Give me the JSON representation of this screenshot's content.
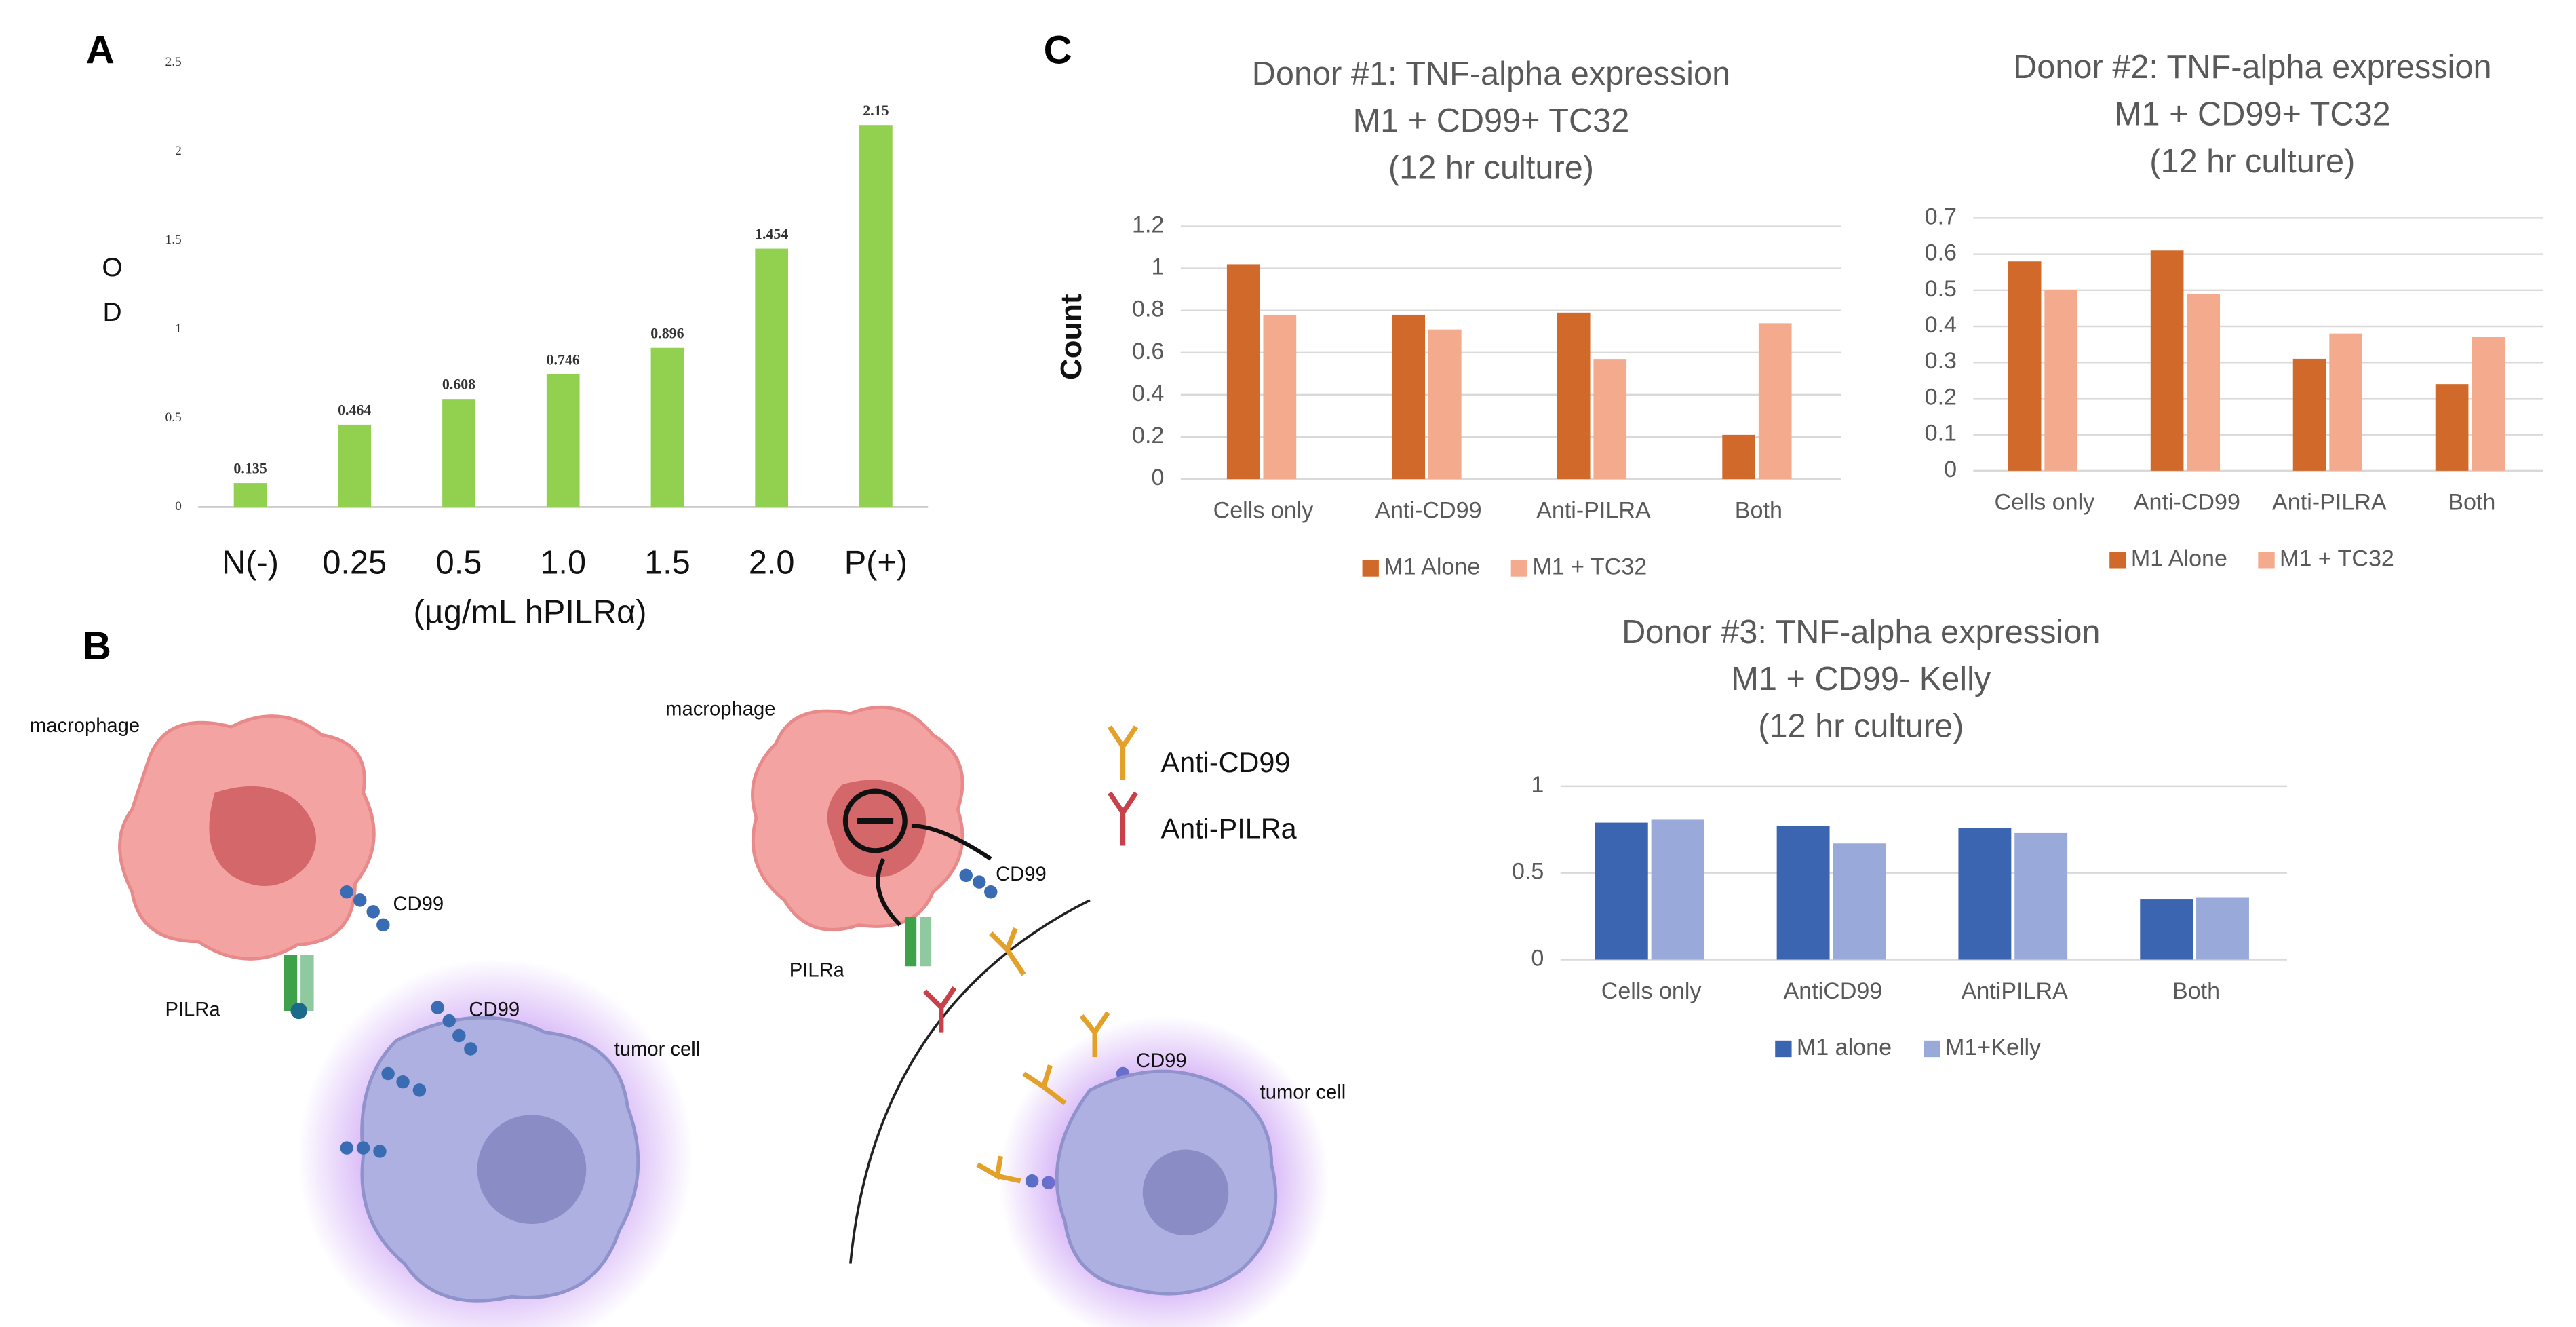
{
  "chart_data": [
    {
      "type": "bar",
      "categories": [
        "N(-)",
        "0.25",
        "0.5",
        "1.0",
        "1.5",
        "2.0",
        "P(+)"
      ],
      "values": [
        0.135,
        0.464,
        0.608,
        0.746,
        0.896,
        1.454,
        2.15
      ],
      "color": "#92d050",
      "ylim": [
        0,
        2.5
      ],
      "yticks": [
        0,
        0.5,
        1,
        1.5,
        2,
        2.5
      ],
      "grid": false,
      "value_labels_shown": true,
      "ylabel": [
        "O",
        "D"
      ],
      "xlabel": "(µg/mL hPILRα)"
    },
    {
      "type": "bar",
      "title": [
        "Donor #1: TNF-alpha expression",
        "M1 + CD99+ TC32",
        "(12 hr culture)"
      ],
      "ylabel": [
        "Count"
      ],
      "categories": [
        "Cells only",
        "Anti-CD99",
        "Anti-PILRA",
        "Both"
      ],
      "series": [
        {
          "name": "M1 Alone",
          "color": "#d0692a",
          "values": [
            1.02,
            0.78,
            0.79,
            0.21
          ]
        },
        {
          "name": "M1 + TC32",
          "color": "#f4aa8c",
          "values": [
            0.78,
            0.71,
            0.57,
            0.74
          ]
        }
      ],
      "ylim": [
        0,
        1.2
      ],
      "yticks": [
        0,
        0.2,
        0.4,
        0.6,
        0.8,
        1,
        1.2
      ],
      "grid": true,
      "legend": "bottom"
    },
    {
      "type": "bar",
      "title": [
        "Donor #2: TNF-alpha expression",
        "M1 + CD99+ TC32",
        "(12 hr culture)"
      ],
      "categories": [
        "Cells only",
        "Anti-CD99",
        "Anti-PILRA",
        "Both"
      ],
      "series": [
        {
          "name": "M1 Alone",
          "color": "#d0692a",
          "values": [
            0.58,
            0.61,
            0.31,
            0.24
          ]
        },
        {
          "name": "M1 + TC32",
          "color": "#f4aa8c",
          "values": [
            0.5,
            0.49,
            0.38,
            0.37
          ]
        }
      ],
      "ylim": [
        0,
        0.7
      ],
      "yticks": [
        0,
        0.1,
        0.2,
        0.3,
        0.4,
        0.5,
        0.6,
        0.7
      ],
      "grid": true,
      "legend": "bottom"
    },
    {
      "type": "bar",
      "title": [
        "Donor #3: TNF-alpha expression",
        "M1 + CD99- Kelly",
        "(12 hr culture)"
      ],
      "categories": [
        "Cells only",
        "AntiCD99",
        "AntiPILRA",
        "Both"
      ],
      "series": [
        {
          "name": "M1 alone",
          "color": "#3b64b1",
          "values": [
            0.79,
            0.77,
            0.76,
            0.35
          ]
        },
        {
          "name": "M1+Kelly",
          "color": "#98a9da",
          "values": [
            0.81,
            0.67,
            0.73,
            0.36
          ]
        }
      ],
      "ylim": [
        0,
        1
      ],
      "yticks": [
        0,
        0.5,
        1
      ],
      "grid": true,
      "legend": "bottom"
    }
  ],
  "diagram": {
    "panel_labels": [
      "A",
      "B",
      "C"
    ],
    "labels": [
      "macrophage",
      "CD99",
      "PILRa",
      "CD99",
      "tumor cell",
      "macrophage",
      "CD99",
      "PILRa",
      "Anti-CD99",
      "Anti-PILRa",
      "CD99",
      "tumor cell"
    ]
  }
}
